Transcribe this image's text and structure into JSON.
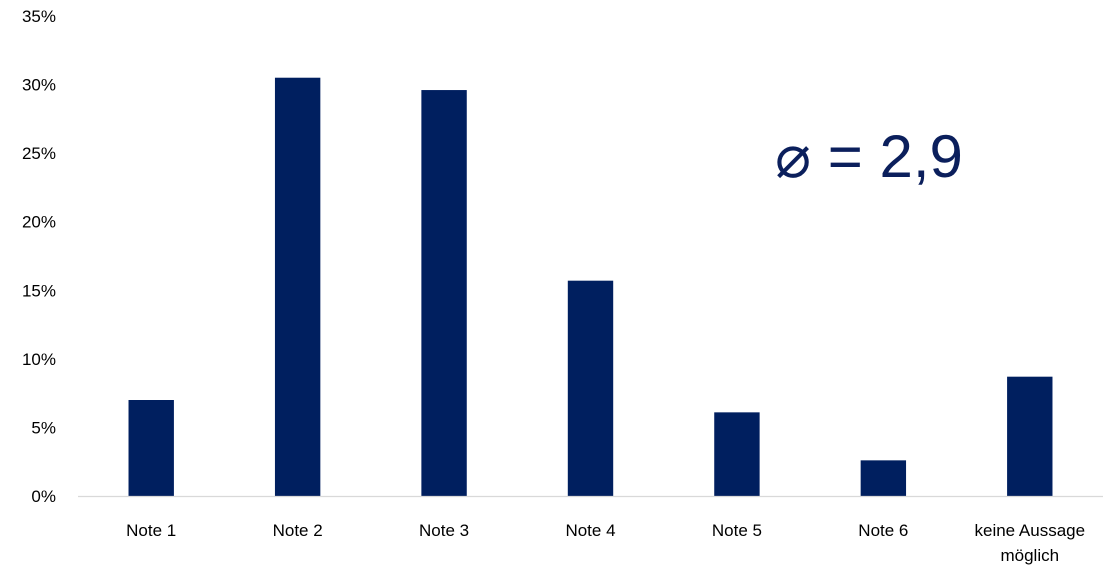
{
  "chart_data": {
    "type": "bar",
    "categories": [
      "Note 1",
      "Note 2",
      "Note 3",
      "Note 4",
      "Note 5",
      "Note 6",
      "keine Aussage möglich"
    ],
    "category_label_lines": [
      [
        "Note 1"
      ],
      [
        "Note 2"
      ],
      [
        "Note 3"
      ],
      [
        "Note 4"
      ],
      [
        "Note 5"
      ],
      [
        "Note 6"
      ],
      [
        "keine Aussage",
        "möglich"
      ]
    ],
    "values": [
      7.0,
      30.5,
      29.6,
      15.7,
      6.1,
      2.6,
      8.7
    ],
    "unit": "%",
    "ylim": [
      0,
      35
    ],
    "yticks": [
      0,
      5,
      10,
      15,
      20,
      25,
      30,
      35
    ],
    "ytick_labels": [
      "0%",
      "5%",
      "10%",
      "15%",
      "20%",
      "25%",
      "30%",
      "35%"
    ],
    "bar_color": "#001f5f",
    "grid": false,
    "legend": "none",
    "annotation": "⌀ = 2,9",
    "title": "",
    "xlabel": "",
    "ylabel": ""
  }
}
